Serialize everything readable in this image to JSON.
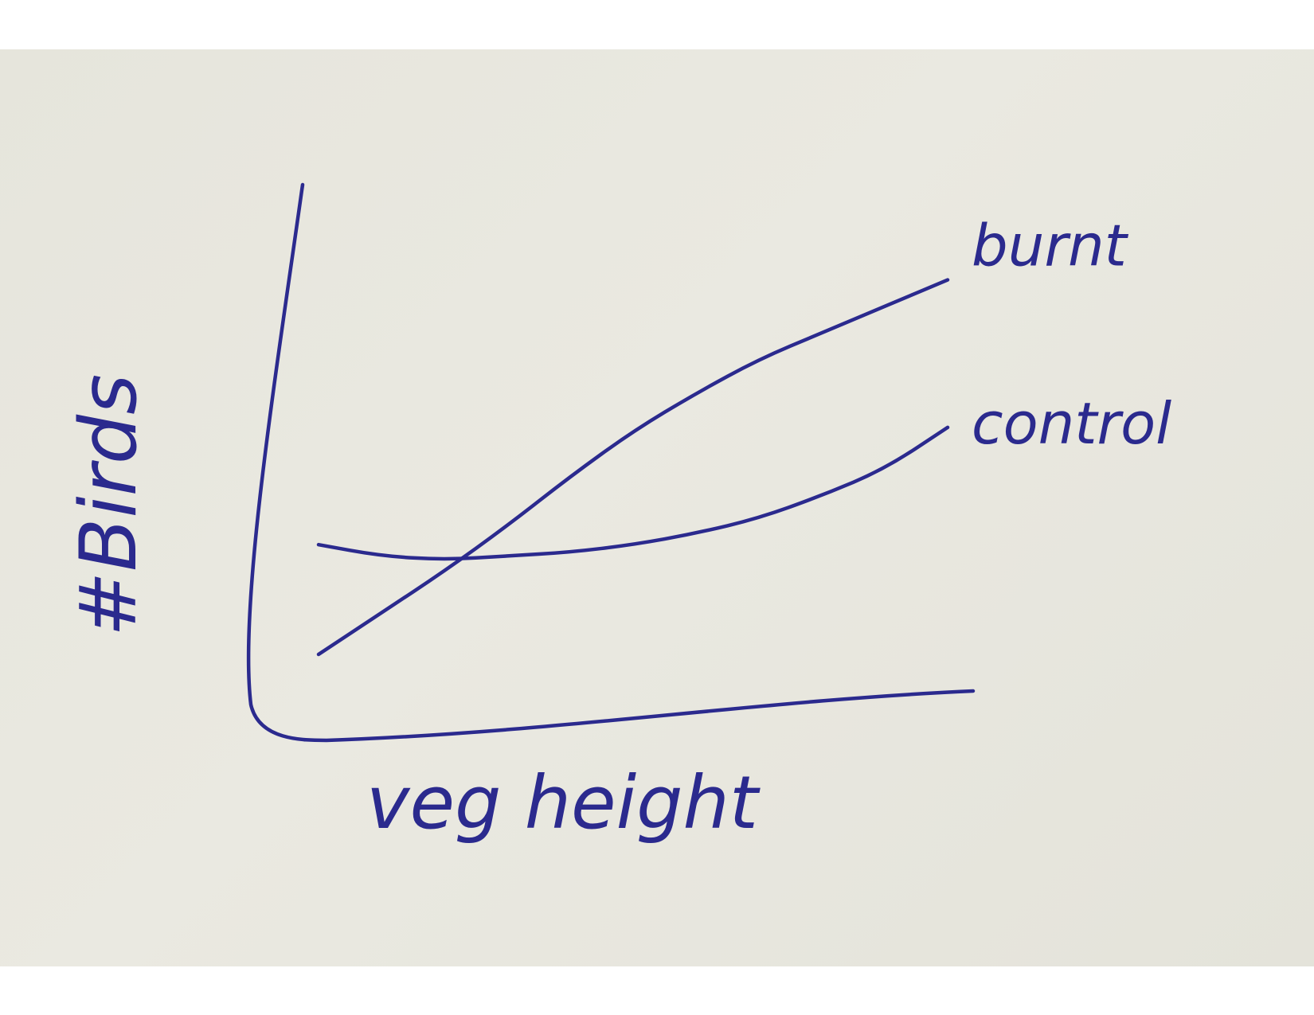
{
  "chart_data": {
    "type": "line",
    "title": "",
    "xlabel": "veg height",
    "ylabel": "#Birds",
    "x": [
      0,
      0.1,
      0.2,
      0.3,
      0.4,
      0.5,
      0.6,
      0.7,
      0.8,
      0.9,
      1.0
    ],
    "series": [
      {
        "name": "burnt",
        "values": [
          0.08,
          0.19,
          0.3,
          0.42,
          0.55,
          0.67,
          0.77,
          0.86,
          0.93,
          1.0,
          1.07
        ]
      },
      {
        "name": "control",
        "values": [
          0.37,
          0.34,
          0.33,
          0.34,
          0.35,
          0.37,
          0.4,
          0.44,
          0.5,
          0.57,
          0.68
        ]
      }
    ],
    "xlim": [
      0,
      1.0
    ],
    "ylim": [
      0,
      1.25
    ],
    "grid": false,
    "legend": "line-end labels (right)",
    "colors": {
      "ink": "#2b2a8e",
      "paper": "#e8e7df"
    }
  }
}
